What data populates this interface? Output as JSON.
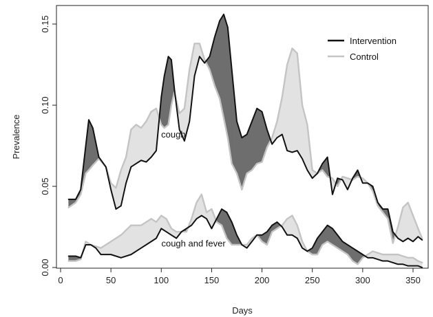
{
  "chart_data": {
    "type": "line",
    "title": "",
    "xlabel": "Days",
    "ylabel": "Prevalence",
    "xlim": [
      0,
      360
    ],
    "ylim": [
      0,
      0.16
    ],
    "xticks": [
      "0",
      "50",
      "100",
      "150",
      "200",
      "250",
      "300",
      "350"
    ],
    "yticks": [
      "0.00",
      "0.05",
      "0.10",
      "0.15"
    ],
    "grid": false,
    "legend_position": "top-right",
    "colors": {
      "intervention": "#111111",
      "control": "#c4c4c4",
      "fill_intervention_higher": "#6e6e6e",
      "fill_control_higher": "#e2e2e2"
    },
    "annotations": [
      {
        "text": "cough",
        "x": 112,
        "y": 0.08
      },
      {
        "text": "cough and fever",
        "x": 132,
        "y": 0.013
      }
    ],
    "series": [
      {
        "name": "Intervention",
        "group": "cough",
        "x": [
          8,
          15,
          20,
          25,
          28,
          32,
          38,
          45,
          50,
          55,
          60,
          65,
          70,
          75,
          80,
          85,
          90,
          95,
          100,
          103,
          107,
          110,
          113,
          118,
          123,
          128,
          133,
          138,
          143,
          148,
          153,
          158,
          162,
          166,
          170,
          175,
          180,
          185,
          190,
          195,
          200,
          205,
          210,
          215,
          220,
          225,
          230,
          235,
          240,
          245,
          250,
          255,
          260,
          265,
          270,
          275,
          280,
          285,
          290,
          295,
          300,
          305,
          310,
          315,
          320,
          325,
          330,
          335,
          340,
          345,
          350,
          355,
          359
        ],
        "y": [
          0.042,
          0.042,
          0.048,
          0.075,
          0.091,
          0.086,
          0.068,
          0.062,
          0.048,
          0.036,
          0.038,
          0.052,
          0.062,
          0.064,
          0.066,
          0.065,
          0.068,
          0.072,
          0.105,
          0.118,
          0.13,
          0.128,
          0.11,
          0.085,
          0.078,
          0.09,
          0.118,
          0.13,
          0.126,
          0.13,
          0.142,
          0.152,
          0.156,
          0.148,
          0.122,
          0.09,
          0.08,
          0.082,
          0.09,
          0.098,
          0.096,
          0.085,
          0.076,
          0.08,
          0.082,
          0.072,
          0.071,
          0.072,
          0.067,
          0.06,
          0.055,
          0.058,
          0.064,
          0.068,
          0.045,
          0.055,
          0.054,
          0.048,
          0.055,
          0.06,
          0.052,
          0.052,
          0.05,
          0.04,
          0.036,
          0.036,
          0.022,
          0.018,
          0.016,
          0.018,
          0.016,
          0.019,
          0.017
        ]
      },
      {
        "name": "Control",
        "group": "cough",
        "x": [
          8,
          15,
          20,
          25,
          28,
          32,
          38,
          45,
          50,
          55,
          60,
          65,
          70,
          75,
          80,
          85,
          90,
          95,
          100,
          103,
          107,
          110,
          113,
          118,
          123,
          128,
          133,
          138,
          143,
          148,
          153,
          158,
          162,
          166,
          170,
          175,
          180,
          185,
          190,
          195,
          200,
          205,
          210,
          215,
          220,
          225,
          230,
          235,
          240,
          245,
          250,
          255,
          260,
          265,
          270,
          275,
          280,
          285,
          290,
          295,
          300,
          305,
          310,
          315,
          320,
          325,
          330,
          335,
          340,
          345,
          350,
          355,
          359
        ],
        "y": [
          0.037,
          0.04,
          0.045,
          0.058,
          0.06,
          0.063,
          0.067,
          0.062,
          0.052,
          0.049,
          0.06,
          0.068,
          0.085,
          0.088,
          0.086,
          0.09,
          0.096,
          0.098,
          0.088,
          0.086,
          0.088,
          0.1,
          0.108,
          0.095,
          0.098,
          0.122,
          0.138,
          0.138,
          0.128,
          0.122,
          0.112,
          0.104,
          0.092,
          0.08,
          0.064,
          0.058,
          0.048,
          0.058,
          0.06,
          0.064,
          0.065,
          0.074,
          0.08,
          0.09,
          0.105,
          0.125,
          0.135,
          0.132,
          0.1,
          0.088,
          0.06,
          0.058,
          0.06,
          0.056,
          0.055,
          0.05,
          0.056,
          0.055,
          0.054,
          0.056,
          0.055,
          0.052,
          0.047,
          0.038,
          0.034,
          0.03,
          0.015,
          0.025,
          0.037,
          0.04,
          0.032,
          0.024,
          0.018
        ]
      },
      {
        "name": "Intervention",
        "group": "cough and fever",
        "x": [
          8,
          15,
          20,
          25,
          30,
          35,
          40,
          50,
          60,
          70,
          80,
          90,
          95,
          100,
          105,
          110,
          115,
          120,
          125,
          130,
          135,
          140,
          145,
          150,
          155,
          160,
          165,
          170,
          175,
          180,
          185,
          190,
          195,
          200,
          205,
          210,
          215,
          220,
          225,
          230,
          235,
          240,
          245,
          250,
          255,
          260,
          265,
          270,
          275,
          280,
          285,
          290,
          295,
          300,
          305,
          310,
          315,
          320,
          325,
          330,
          335,
          340,
          345,
          350,
          355,
          359
        ],
        "y": [
          0.007,
          0.007,
          0.006,
          0.014,
          0.014,
          0.012,
          0.008,
          0.008,
          0.006,
          0.008,
          0.012,
          0.016,
          0.018,
          0.024,
          0.022,
          0.02,
          0.018,
          0.022,
          0.024,
          0.026,
          0.03,
          0.032,
          0.03,
          0.024,
          0.03,
          0.036,
          0.034,
          0.028,
          0.02,
          0.014,
          0.012,
          0.016,
          0.02,
          0.02,
          0.022,
          0.026,
          0.028,
          0.025,
          0.02,
          0.02,
          0.018,
          0.012,
          0.01,
          0.012,
          0.018,
          0.022,
          0.026,
          0.024,
          0.02,
          0.016,
          0.014,
          0.012,
          0.01,
          0.008,
          0.006,
          0.006,
          0.005,
          0.004,
          0.004,
          0.003,
          0.002,
          0.002,
          0.001,
          0.001,
          0.001,
          0.0
        ]
      },
      {
        "name": "Control",
        "group": "cough and fever",
        "x": [
          8,
          15,
          20,
          25,
          30,
          35,
          40,
          50,
          60,
          70,
          80,
          90,
          95,
          100,
          105,
          110,
          115,
          120,
          125,
          130,
          135,
          140,
          145,
          150,
          155,
          160,
          165,
          170,
          175,
          180,
          185,
          190,
          195,
          200,
          205,
          210,
          215,
          220,
          225,
          230,
          235,
          240,
          245,
          250,
          255,
          260,
          265,
          270,
          275,
          280,
          285,
          290,
          295,
          300,
          305,
          310,
          315,
          320,
          325,
          330,
          335,
          340,
          345,
          350,
          355,
          359
        ],
        "y": [
          0.004,
          0.004,
          0.005,
          0.016,
          0.014,
          0.013,
          0.012,
          0.016,
          0.02,
          0.026,
          0.026,
          0.03,
          0.028,
          0.032,
          0.03,
          0.024,
          0.022,
          0.022,
          0.022,
          0.03,
          0.04,
          0.045,
          0.034,
          0.036,
          0.028,
          0.026,
          0.018,
          0.014,
          0.014,
          0.014,
          0.014,
          0.018,
          0.02,
          0.016,
          0.014,
          0.022,
          0.024,
          0.026,
          0.03,
          0.032,
          0.026,
          0.016,
          0.01,
          0.008,
          0.008,
          0.014,
          0.016,
          0.014,
          0.012,
          0.01,
          0.008,
          0.004,
          0.002,
          0.006,
          0.008,
          0.01,
          0.009,
          0.008,
          0.008,
          0.008,
          0.008,
          0.007,
          0.006,
          0.006,
          0.004,
          0.003
        ]
      }
    ]
  }
}
